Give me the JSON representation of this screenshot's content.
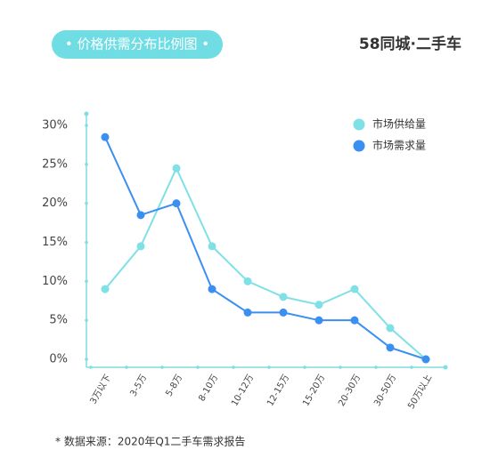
{
  "header": {
    "title": "• 价格供需分布比例图 •",
    "logo": "58同城·二手车"
  },
  "chart_data": {
    "type": "line",
    "categories": [
      "3万以下",
      "3-5万",
      "5-8万",
      "8-10万",
      "10-12万",
      "12-15万",
      "15-20万",
      "20-30万",
      "30-50万",
      "50万以上"
    ],
    "series": [
      {
        "name": "市场供给量",
        "color": "#7fe0e6",
        "values": [
          9,
          14.5,
          24.5,
          14.5,
          10,
          8,
          7,
          9,
          4,
          0
        ]
      },
      {
        "name": "市场需求量",
        "color": "#3b8ff0",
        "values": [
          28.5,
          18.5,
          20,
          9,
          6,
          6,
          5,
          5,
          1.5,
          0
        ]
      }
    ],
    "ylim": [
      0,
      30
    ],
    "yticks": [
      {
        "value": 0,
        "label": "0%"
      },
      {
        "value": 5,
        "label": "5%"
      },
      {
        "value": 10,
        "label": "10%"
      },
      {
        "value": 15,
        "label": "15%"
      },
      {
        "value": 20,
        "label": "20%"
      },
      {
        "value": 25,
        "label": "25%"
      },
      {
        "value": 30,
        "label": "30%"
      }
    ],
    "legend": "top-right"
  },
  "footer": {
    "source": "* 数据来源：2020年Q1二手车需求报告"
  }
}
